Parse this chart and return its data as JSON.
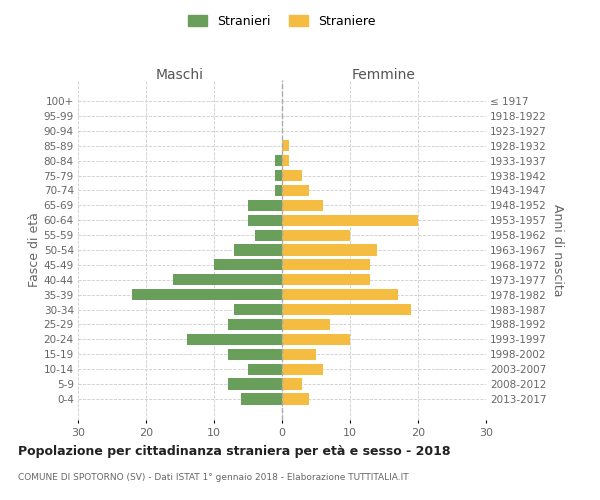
{
  "age_groups": [
    "0-4",
    "5-9",
    "10-14",
    "15-19",
    "20-24",
    "25-29",
    "30-34",
    "35-39",
    "40-44",
    "45-49",
    "50-54",
    "55-59",
    "60-64",
    "65-69",
    "70-74",
    "75-79",
    "80-84",
    "85-89",
    "90-94",
    "95-99",
    "100+"
  ],
  "birth_years": [
    "2013-2017",
    "2008-2012",
    "2003-2007",
    "1998-2002",
    "1993-1997",
    "1988-1992",
    "1983-1987",
    "1978-1982",
    "1973-1977",
    "1968-1972",
    "1963-1967",
    "1958-1962",
    "1953-1957",
    "1948-1952",
    "1943-1947",
    "1938-1942",
    "1933-1937",
    "1928-1932",
    "1923-1927",
    "1918-1922",
    "≤ 1917"
  ],
  "maschi": [
    6,
    8,
    5,
    8,
    14,
    8,
    7,
    22,
    16,
    10,
    7,
    4,
    5,
    5,
    1,
    1,
    1,
    0,
    0,
    0,
    0
  ],
  "femmine": [
    4,
    3,
    6,
    5,
    10,
    7,
    19,
    17,
    13,
    13,
    14,
    10,
    20,
    6,
    4,
    3,
    1,
    1,
    0,
    0,
    0
  ],
  "color_maschi": "#6a9e5b",
  "color_femmine": "#f5bc42",
  "title": "Popolazione per cittadinanza straniera per età e sesso - 2018",
  "subtitle": "COMUNE DI SPOTORNO (SV) - Dati ISTAT 1° gennaio 2018 - Elaborazione TUTTITALIA.IT",
  "ylabel_left": "Fasce di età",
  "ylabel_right": "Anni di nascita",
  "xlabel_maschi": "Maschi",
  "xlabel_femmine": "Femmine",
  "legend_maschi": "Stranieri",
  "legend_femmine": "Straniere",
  "xlim": 30,
  "background_color": "#ffffff",
  "grid_color": "#cccccc"
}
